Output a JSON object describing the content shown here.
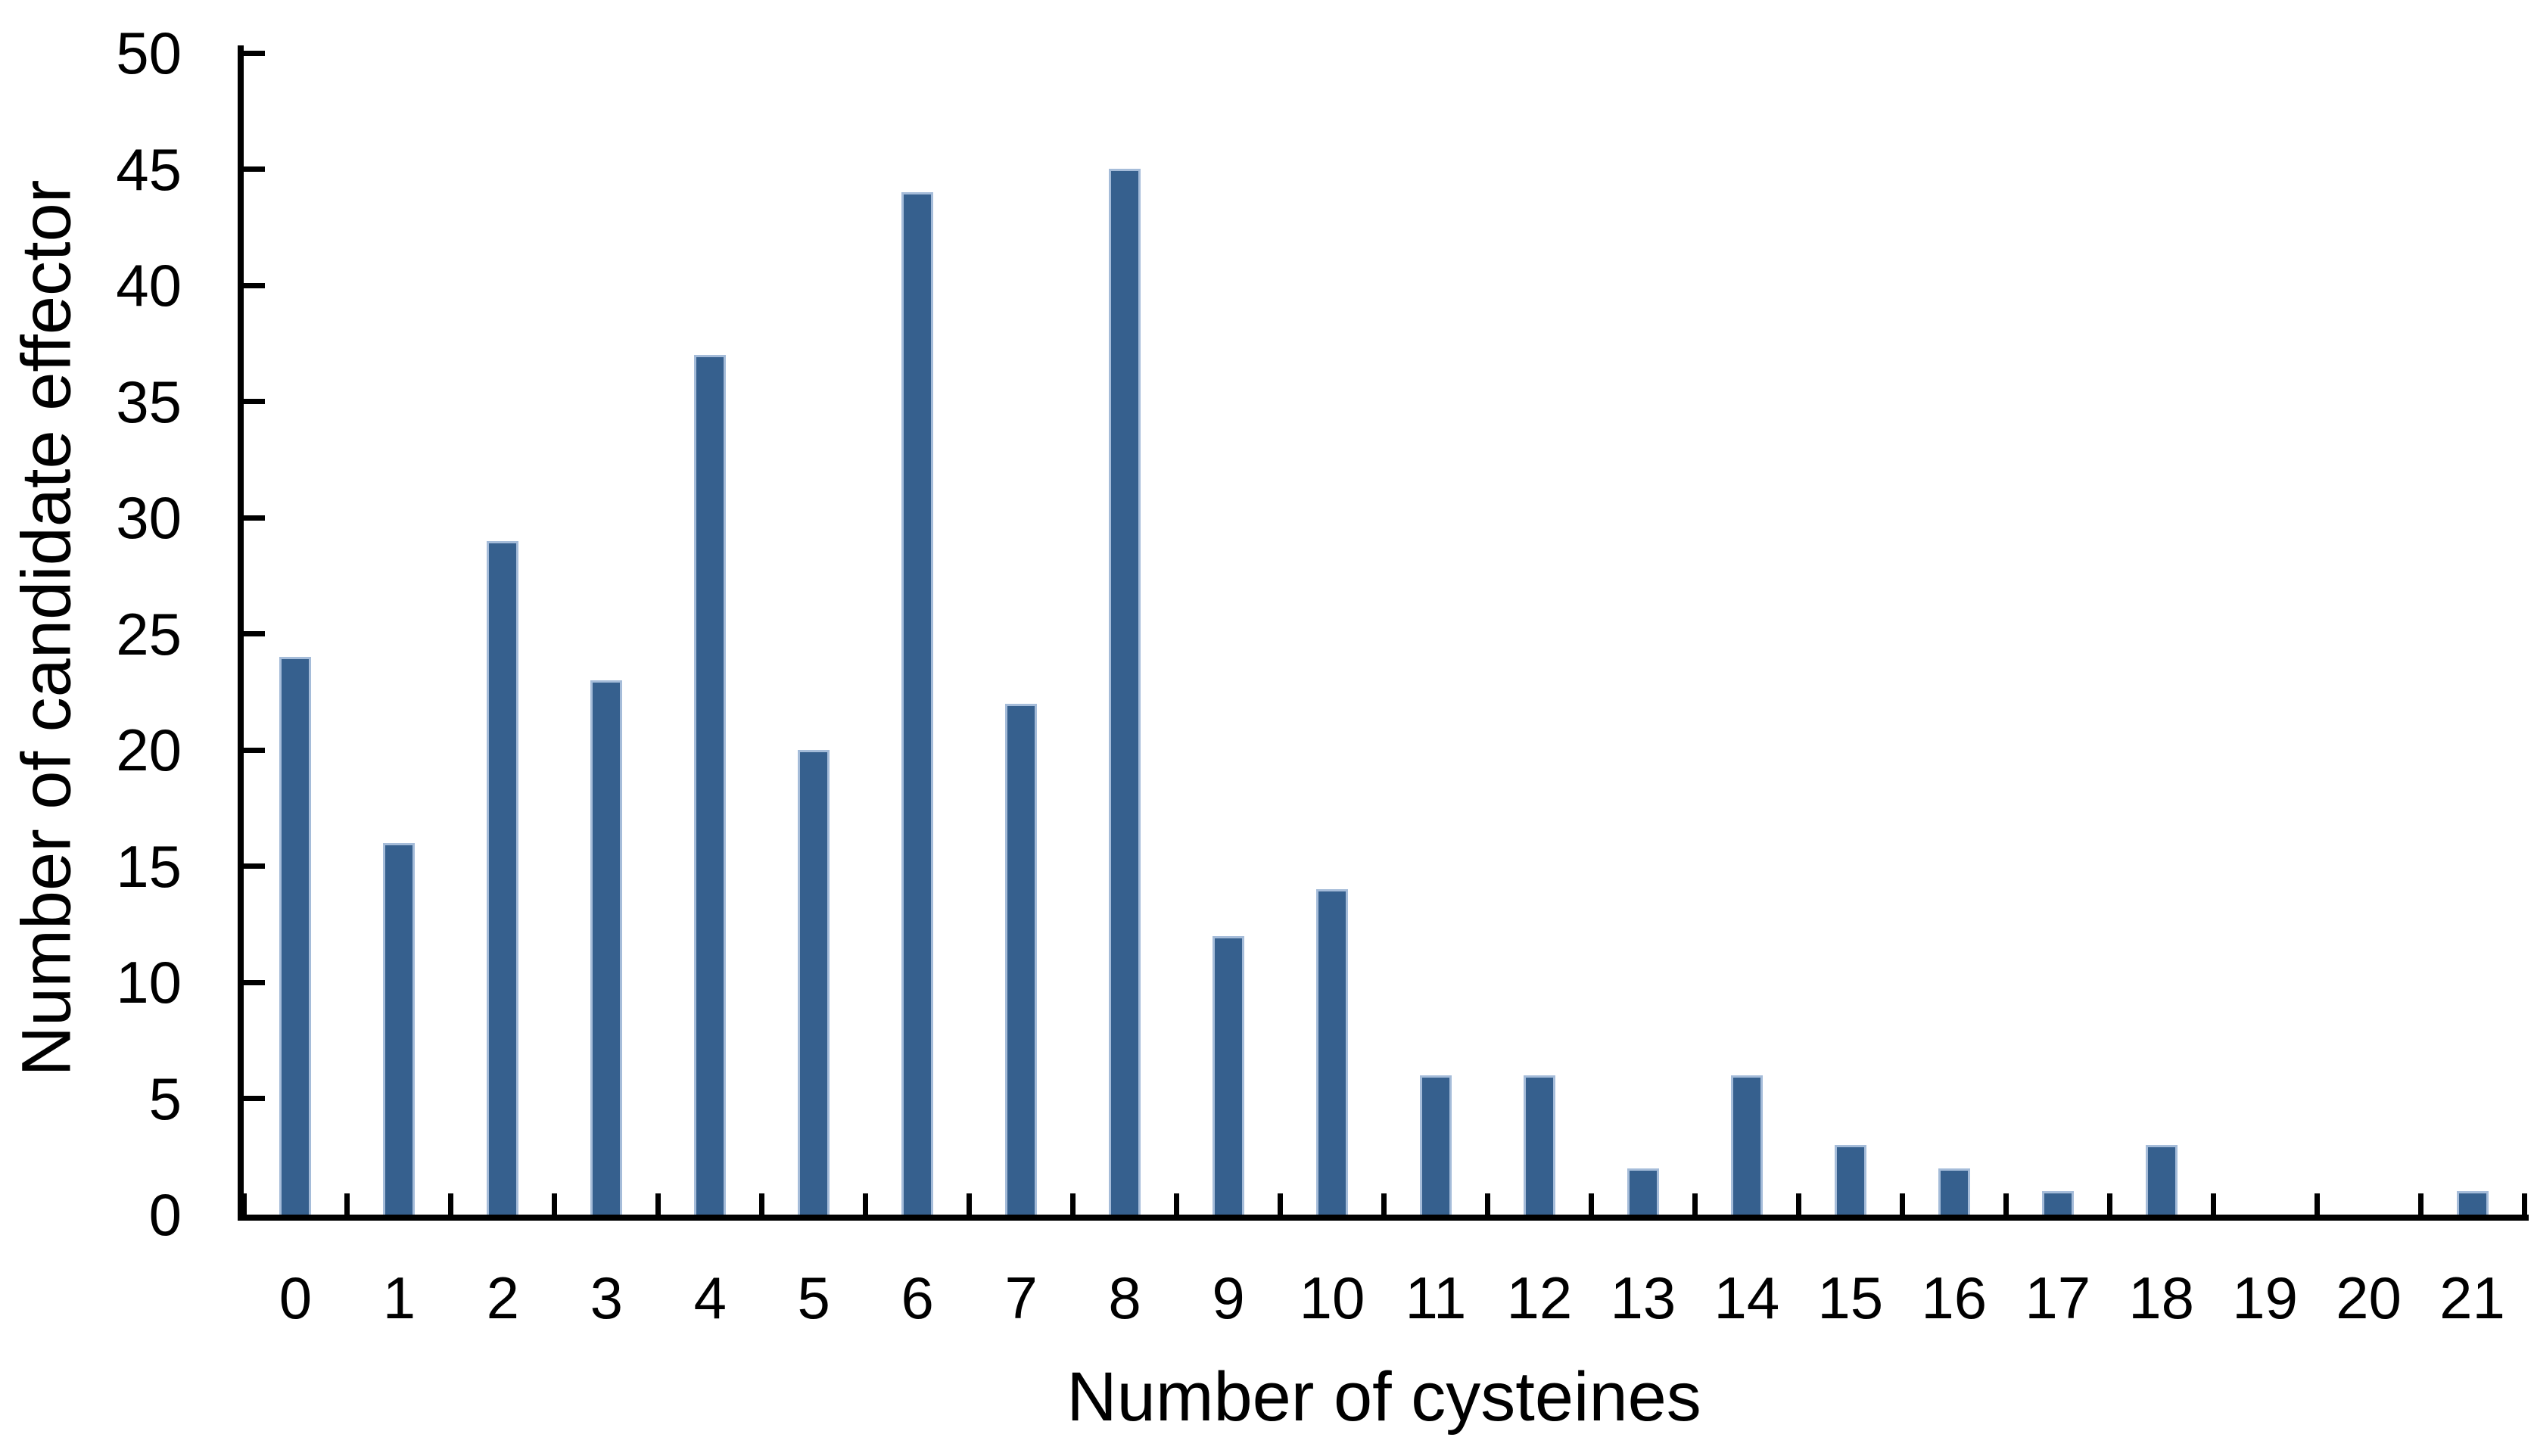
{
  "chart_data": {
    "type": "bar",
    "title": "",
    "xlabel": "Number of cysteines",
    "ylabel": "Number of candidate effector",
    "categories": [
      "0",
      "1",
      "2",
      "3",
      "4",
      "5",
      "6",
      "7",
      "8",
      "9",
      "10",
      "11",
      "12",
      "13",
      "14",
      "15",
      "16",
      "17",
      "18",
      "19",
      "20",
      "21"
    ],
    "values": [
      24,
      16,
      29,
      23,
      37,
      20,
      44,
      22,
      45,
      12,
      14,
      6,
      6,
      2,
      6,
      3,
      2,
      1,
      3,
      0,
      0,
      1
    ],
    "ylim": [
      0,
      50
    ],
    "ytick_step": 5,
    "ytick_labels": [
      "0",
      "5",
      "10",
      "15",
      "20",
      "25",
      "30",
      "35",
      "40",
      "45",
      "50"
    ],
    "grid": "off",
    "legend": "none",
    "bar_color": "#36608E",
    "bar_edge_color": "#A5BCD9",
    "axis_color": "#000000",
    "background_color": "#FFFFFF"
  }
}
